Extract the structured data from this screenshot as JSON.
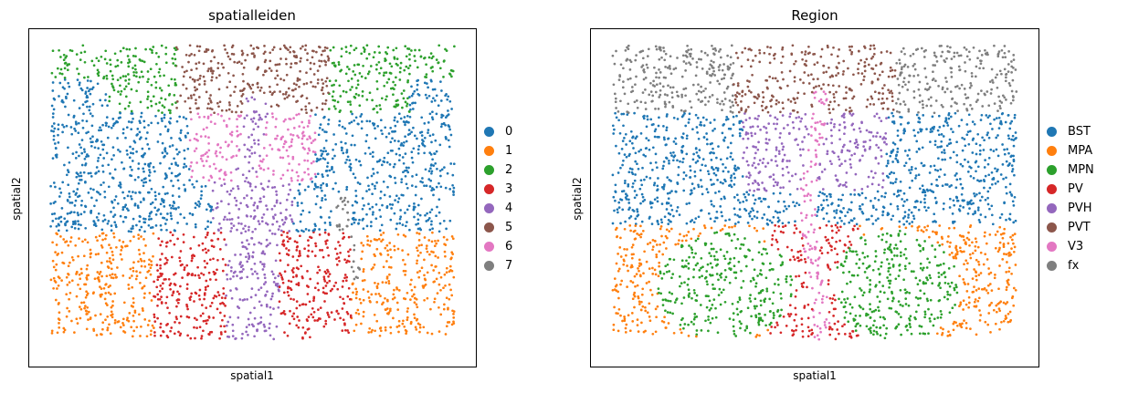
{
  "chart_data": [
    {
      "type": "scatter",
      "title": "spatialleiden",
      "xlabel": "spatial1",
      "ylabel": "spatial2",
      "legend_position": "right",
      "legend": [
        {
          "label": "0",
          "color": "#1f77b4"
        },
        {
          "label": "1",
          "color": "#ff7f0e"
        },
        {
          "label": "2",
          "color": "#2ca02c"
        },
        {
          "label": "3",
          "color": "#d62728"
        },
        {
          "label": "4",
          "color": "#9467bd"
        },
        {
          "label": "5",
          "color": "#8c564b"
        },
        {
          "label": "6",
          "color": "#e377c2"
        },
        {
          "label": "7",
          "color": "#7f7f7f"
        }
      ]
    },
    {
      "type": "scatter",
      "title": "Region",
      "xlabel": "spatial1",
      "ylabel": "spatial2",
      "legend_position": "right",
      "legend": [
        {
          "label": "BST",
          "color": "#1f77b4"
        },
        {
          "label": "MPA",
          "color": "#ff7f0e"
        },
        {
          "label": "MPN",
          "color": "#2ca02c"
        },
        {
          "label": "PV",
          "color": "#d62728"
        },
        {
          "label": "PVH",
          "color": "#9467bd"
        },
        {
          "label": "PVT",
          "color": "#8c564b"
        },
        {
          "label": "V3",
          "color": "#e377c2"
        },
        {
          "label": "fx",
          "color": "#7f7f7f"
        }
      ]
    }
  ]
}
